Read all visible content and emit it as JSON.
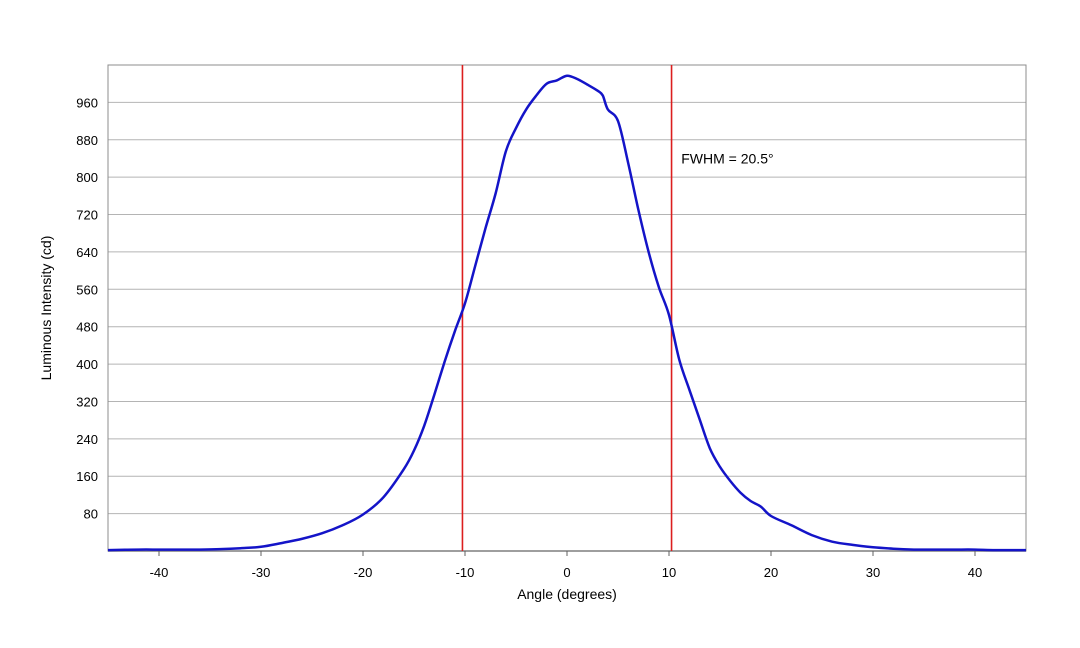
{
  "chart_data": {
    "type": "line",
    "title": "",
    "xlabel": "Angle (degrees)",
    "ylabel": "Luminous Intensity (cd)",
    "xlim": [
      -45,
      45
    ],
    "ylim": [
      0,
      1040
    ],
    "xticks": [
      -40,
      -30,
      -20,
      -10,
      0,
      10,
      20,
      30,
      40
    ],
    "yticks": [
      80,
      160,
      240,
      320,
      400,
      480,
      560,
      640,
      720,
      800,
      880,
      960
    ],
    "grid": "horizontal",
    "annotation": "FWHM = 20.5°",
    "vlines": [
      -10.25,
      10.25
    ],
    "colors": {
      "series": "#1414c8",
      "vline": "#dc1e1e",
      "grid": "#b4b4b4",
      "frame": "#8c8c8c"
    },
    "series": [
      {
        "x": [
          -45,
          -42,
          -40,
          -38,
          -36,
          -34,
          -32,
          -30,
          -28,
          -26,
          -24,
          -22,
          -20,
          -18,
          -16,
          -15,
          -14,
          -13,
          -12,
          -11,
          -10,
          -9,
          -8,
          -7,
          -6,
          -5,
          -4,
          -3,
          -2,
          -1,
          0,
          1,
          2,
          3,
          3.5,
          4,
          5,
          6,
          7,
          8,
          9,
          10,
          11,
          12,
          13,
          14,
          15,
          16,
          17,
          18,
          19,
          20,
          22,
          24,
          26,
          28,
          30,
          32,
          34,
          36,
          38,
          40,
          42,
          45
        ],
        "y": [
          2,
          3,
          3,
          3,
          3,
          4,
          6,
          9,
          17,
          26,
          38,
          55,
          78,
          115,
          175,
          215,
          268,
          335,
          405,
          470,
          530,
          610,
          690,
          765,
          855,
          905,
          945,
          975,
          1000,
          1007,
          1017,
          1010,
          998,
          985,
          975,
          945,
          920,
          830,
          730,
          640,
          565,
          505,
          410,
          345,
          282,
          220,
          180,
          150,
          125,
          107,
          95,
          75,
          55,
          34,
          20,
          13,
          8,
          5,
          3,
          3,
          3,
          3,
          2,
          2
        ]
      }
    ]
  }
}
